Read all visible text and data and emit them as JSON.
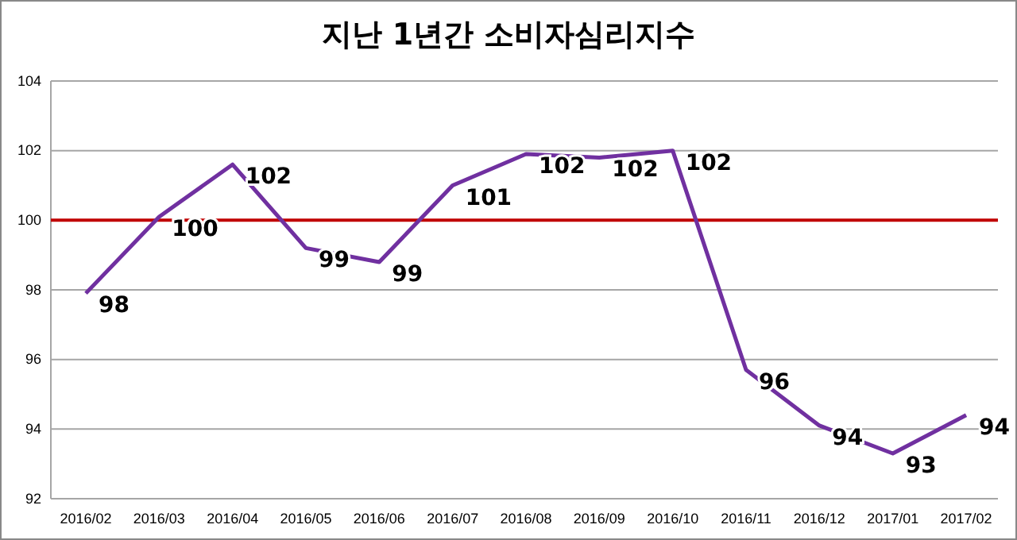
{
  "chart_data": {
    "type": "line",
    "title": "지난 1년간 소비자심리지수",
    "categories": [
      "2016/02",
      "2016/03",
      "2016/04",
      "2016/05",
      "2016/06",
      "2016/07",
      "2016/08",
      "2016/09",
      "2016/10",
      "2016/11",
      "2016/12",
      "2017/01",
      "2017/02"
    ],
    "series": [
      {
        "color": "#7030a0",
        "values": [
          97.9,
          100.1,
          101.6,
          99.2,
          98.8,
          101.0,
          101.9,
          101.8,
          102.0,
          95.7,
          94.1,
          93.3,
          94.4
        ],
        "value_labels": [
          "98",
          "100",
          "102",
          "99",
          "99",
          "101",
          "102",
          "102",
          "102",
          "96",
          "94",
          "93",
          "94"
        ]
      }
    ],
    "ylim": [
      92,
      104
    ],
    "yticks": [
      92,
      94,
      96,
      98,
      100,
      102,
      104
    ],
    "grid": "y",
    "ref_lines": [
      {
        "axis": "y",
        "value": 100,
        "color": "#c00000"
      }
    ]
  }
}
